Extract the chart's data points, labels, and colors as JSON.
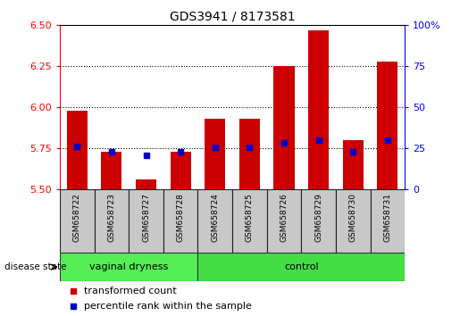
{
  "title": "GDS3941 / 8173581",
  "samples": [
    "GSM658722",
    "GSM658723",
    "GSM658727",
    "GSM658728",
    "GSM658724",
    "GSM658725",
    "GSM658726",
    "GSM658729",
    "GSM658730",
    "GSM658731"
  ],
  "red_bar_values": [
    5.98,
    5.73,
    5.56,
    5.73,
    5.93,
    5.93,
    6.25,
    6.47,
    5.8,
    6.28
  ],
  "blue_marker_values": [
    5.762,
    5.73,
    5.71,
    5.73,
    5.755,
    5.755,
    5.782,
    5.8,
    5.73,
    5.8
  ],
  "ylim_left": [
    5.5,
    6.5
  ],
  "ylim_right": [
    0,
    100
  ],
  "yticks_left": [
    5.5,
    5.75,
    6.0,
    6.25,
    6.5
  ],
  "yticks_right": [
    0,
    25,
    50,
    75,
    100
  ],
  "ytick_labels_right": [
    "0",
    "25",
    "50",
    "75",
    "100%"
  ],
  "bar_bottom": 5.5,
  "bar_color": "#cc0000",
  "marker_color": "#0000cc",
  "n_vaginal": 4,
  "n_control": 6,
  "group_label_vaginal": "vaginal dryness",
  "group_label_control": "control",
  "group_color": "#55ee55",
  "bg_color": "#ffffff",
  "sample_box_color": "#c8c8c8",
  "sample_box_border": "#222222",
  "disease_label": "disease state",
  "dotted_lines": [
    5.75,
    6.0,
    6.25
  ],
  "legend_red_label": "transformed count",
  "legend_blue_label": "percentile rank within the sample",
  "title_fontsize": 10,
  "axis_label_fontsize": 8,
  "sample_fontsize": 6.5,
  "group_fontsize": 8,
  "legend_fontsize": 8
}
